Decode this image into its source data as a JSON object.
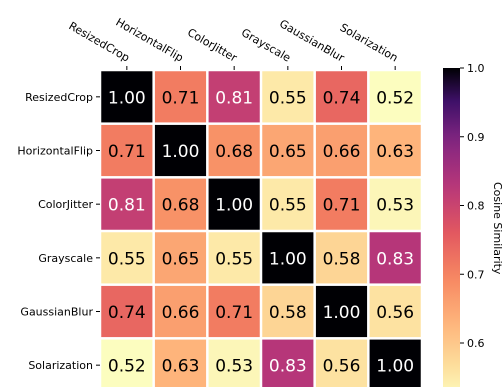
{
  "chart_data": {
    "type": "heatmap",
    "rows": [
      "ResizedCrop",
      "HorizontalFlip",
      "ColorJitter",
      "Grayscale",
      "GaussianBlur",
      "Solarization"
    ],
    "cols": [
      "ResizedCrop",
      "HorizontalFlip",
      "ColorJitter",
      "Grayscale",
      "GaussianBlur",
      "Solarization"
    ],
    "values": [
      [
        1.0,
        0.71,
        0.81,
        0.55,
        0.74,
        0.52
      ],
      [
        0.71,
        1.0,
        0.68,
        0.65,
        0.66,
        0.63
      ],
      [
        0.81,
        0.68,
        1.0,
        0.55,
        0.71,
        0.53
      ],
      [
        0.55,
        0.65,
        0.55,
        1.0,
        0.58,
        0.83
      ],
      [
        0.74,
        0.66,
        0.71,
        0.58,
        1.0,
        0.56
      ],
      [
        0.52,
        0.63,
        0.53,
        0.83,
        0.56,
        1.0
      ]
    ],
    "value_labels": [
      [
        "1.00",
        "0.71",
        "0.81",
        "0.55",
        "0.74",
        "0.52"
      ],
      [
        "0.71",
        "1.00",
        "0.68",
        "0.65",
        "0.66",
        "0.63"
      ],
      [
        "0.81",
        "0.68",
        "1.00",
        "0.55",
        "0.71",
        "0.53"
      ],
      [
        "0.55",
        "0.65",
        "0.55",
        "1.00",
        "0.58",
        "0.83"
      ],
      [
        "0.74",
        "0.66",
        "0.71",
        "0.58",
        "1.00",
        "0.56"
      ],
      [
        "0.52",
        "0.63",
        "0.53",
        "0.83",
        "0.56",
        "1.00"
      ]
    ],
    "colorbar": {
      "label": "Cosine Similarity",
      "range": [
        0.52,
        1.0
      ],
      "ticks": [
        0.6,
        0.7,
        0.8,
        0.9,
        1.0
      ],
      "tick_labels": [
        "0.6",
        "0.7",
        "0.8",
        "0.9",
        "1.0"
      ],
      "colormap": "magma_r"
    },
    "grid": false,
    "cell_separator_color": "#ffffff"
  }
}
